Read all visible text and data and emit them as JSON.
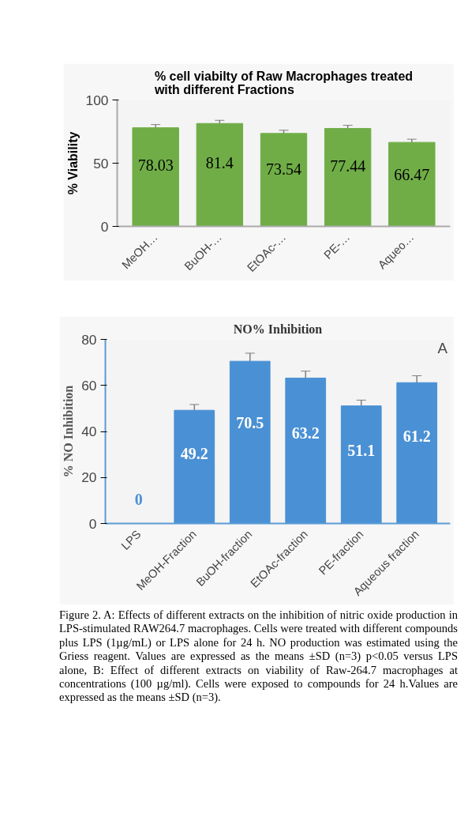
{
  "chart_data": [
    {
      "type": "bar",
      "title": "% cell viabilty of Raw Macrophages treated\nwith different Fractions",
      "ylabel": "% Viability",
      "categories": [
        "MeOH…",
        "BuOH-…",
        "EtOAc-…",
        "PE-…",
        "Aqueo…"
      ],
      "values": [
        78.03,
        81.4,
        73.54,
        77.44,
        66.47
      ],
      "errors": [
        2.5,
        2.5,
        2.5,
        2.5,
        2.5
      ],
      "color": "#70ad47",
      "ylim": [
        0,
        100
      ],
      "yticks": [
        0,
        50,
        100
      ],
      "grid": false,
      "data_labels": true
    },
    {
      "type": "bar",
      "title": "NO% Inhibition",
      "ylabel": "% NO Inhibition",
      "categories": [
        "LPS",
        "MeOH-Fraction",
        "BuOH-fraction",
        "EtOAc-fraction",
        "PE-fraction",
        "Aqueous fraction"
      ],
      "values": [
        0,
        49.2,
        70.5,
        63.2,
        51.1,
        61.2
      ],
      "errors": [
        null,
        2.5,
        3.5,
        3,
        2.5,
        3
      ],
      "color": "#4a90d4",
      "ylim": [
        0,
        80
      ],
      "yticks": [
        0,
        20,
        40,
        60,
        80
      ],
      "grid": false,
      "data_labels": true,
      "annotations": [
        "A",
        "Figure 2.  A: Effects of different extracts on the inhibition of nitric oxide production in LPS-stimulated RAW264.7 macrophages. Cells were treated with different compounds plus LPS (1µg/mL) or LPS alone for 24 h. NO production was estimated using the Griess reagent. Values are expressed as the means ±SD (n=3) p<0.05 versus LPS alone, B: Effect of different extracts on viability of Raw-264.7 macrophages at concentrations (100 µg/ml). Cells were exposed to compounds for 24 h.Values are expressed as the means ±SD (n=3)."
      ]
    }
  ]
}
